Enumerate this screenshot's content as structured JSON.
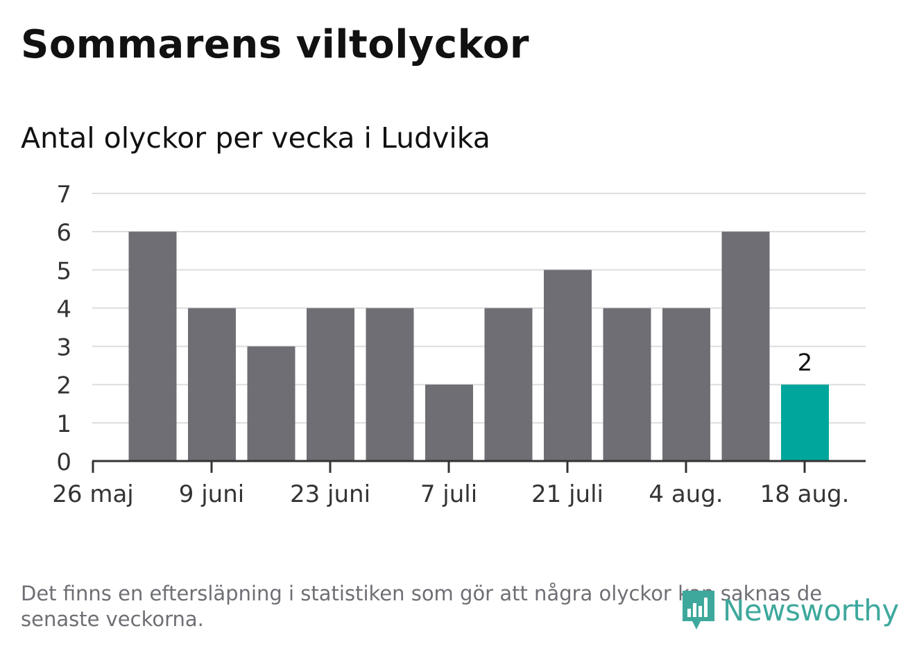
{
  "title": "Sommarens viltolyckor",
  "subtitle": "Antal olyckor per vecka i Ludvika",
  "footnote": "Det finns en eftersläpning i statistiken som gör att några olyckor kan saknas de senaste veckorna.",
  "brand": {
    "name": "Newsworthy",
    "icon": "newsworthy-logo-icon",
    "color": "#3ea89c"
  },
  "chart_data": {
    "type": "bar",
    "title": "Antal olyckor per vecka i Ludvika",
    "xlabel": "",
    "ylabel": "",
    "ylim": [
      0,
      7
    ],
    "yticks": [
      0,
      1,
      2,
      3,
      4,
      5,
      6,
      7
    ],
    "grid": true,
    "x_tick_labels": [
      "26 maj",
      "9 juni",
      "23 juni",
      "7 juli",
      "21 juli",
      "4 aug.",
      "18 aug."
    ],
    "weeks": [
      "2 juni",
      "9 juni",
      "16 juni",
      "23 juni",
      "30 juni",
      "7 juli",
      "14 juli",
      "21 juli",
      "28 juli",
      "4 aug.",
      "11 aug.",
      "18 aug."
    ],
    "values": [
      6,
      4,
      3,
      4,
      4,
      2,
      4,
      5,
      4,
      4,
      6,
      2
    ],
    "highlight_index": 11,
    "highlight_label": "2",
    "colors": {
      "bar": "#6f6e74",
      "highlight": "#00a69c",
      "grid": "#dddddd",
      "axis": "#333333"
    }
  }
}
